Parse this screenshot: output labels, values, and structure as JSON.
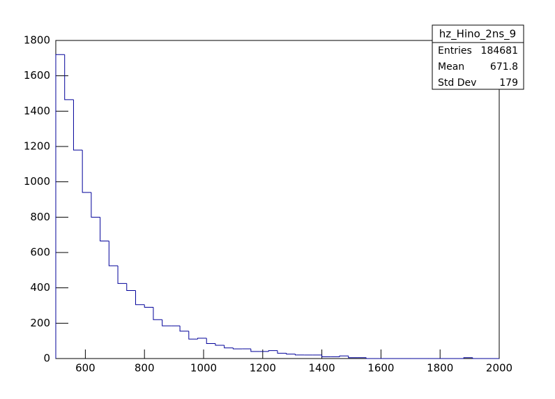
{
  "chart_data": {
    "type": "histogram",
    "color": "#000099",
    "bins": [
      500,
      530,
      560,
      590,
      620,
      650,
      680,
      710,
      740,
      770,
      800,
      830,
      860,
      890,
      920,
      950,
      980,
      1010,
      1040,
      1070,
      1100,
      1130,
      1160,
      1190,
      1220,
      1250,
      1280,
      1310,
      1340,
      1370,
      1400,
      1430,
      1460,
      1490,
      1520,
      1550,
      1580,
      1610,
      1640,
      1670,
      1700,
      1730,
      1760,
      1790,
      1820,
      1850,
      1880,
      1910,
      1940,
      1970,
      2000
    ],
    "values": [
      1720,
      1465,
      1180,
      940,
      800,
      665,
      525,
      425,
      385,
      305,
      290,
      220,
      185,
      185,
      155,
      110,
      115,
      85,
      75,
      60,
      55,
      55,
      40,
      40,
      45,
      30,
      25,
      20,
      20,
      20,
      10,
      10,
      15,
      5,
      5,
      0,
      0,
      0,
      0,
      0,
      0,
      0,
      0,
      0,
      0,
      0,
      5,
      0,
      0,
      0
    ],
    "xlim": [
      500,
      2000
    ],
    "xticks": [
      600,
      800,
      1000,
      1200,
      1400,
      1600,
      1800,
      2000
    ],
    "ylim": [
      0,
      1800
    ],
    "yticks": [
      0,
      200,
      400,
      600,
      800,
      1000,
      1200,
      1400,
      1600,
      1800
    ],
    "stats": {
      "title": "hz_Hino_2ns_9",
      "rows": [
        [
          "Entries",
          184681
        ],
        [
          "Mean",
          671.8
        ],
        [
          "Std Dev",
          179
        ]
      ]
    }
  }
}
